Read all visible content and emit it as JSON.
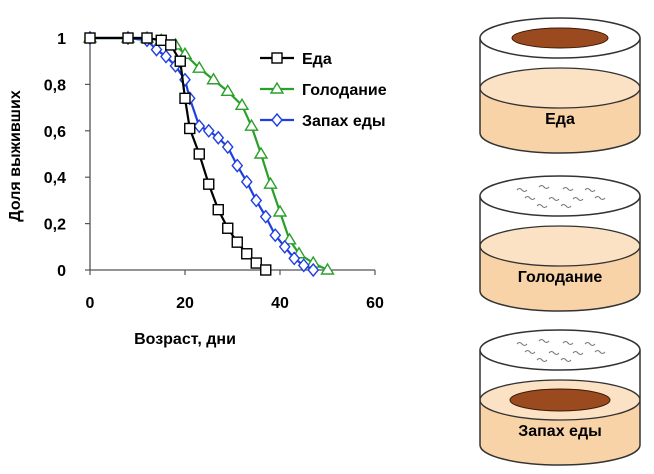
{
  "chart_data": {
    "type": "line",
    "title": "",
    "xlabel": "Возраст, дни",
    "ylabel": "Доля выживших",
    "xlim": [
      0,
      60
    ],
    "ylim": [
      0,
      1
    ],
    "x_ticks": [
      "0",
      "20",
      "40",
      "60"
    ],
    "y_ticks": [
      "0",
      "0,2",
      "0,4",
      "0,6",
      "0,8",
      "1"
    ],
    "legend_position": "top-right",
    "series": [
      {
        "name": "Еда",
        "color": "#000000",
        "marker": "square",
        "points": [
          [
            0,
            1
          ],
          [
            8,
            1
          ],
          [
            12,
            1
          ],
          [
            15,
            0.99
          ],
          [
            17,
            0.97
          ],
          [
            19,
            0.9
          ],
          [
            20,
            0.74
          ],
          [
            21,
            0.61
          ],
          [
            23,
            0.5
          ],
          [
            25,
            0.37
          ],
          [
            27,
            0.26
          ],
          [
            29,
            0.18
          ],
          [
            31,
            0.12
          ],
          [
            33,
            0.07
          ],
          [
            35,
            0.03
          ],
          [
            37,
            0
          ]
        ]
      },
      {
        "name": "Голодание",
        "color": "#2aa02a",
        "marker": "triangle",
        "points": [
          [
            0,
            1
          ],
          [
            8,
            1
          ],
          [
            12,
            1
          ],
          [
            15,
            0.99
          ],
          [
            18,
            0.97
          ],
          [
            20,
            0.93
          ],
          [
            23,
            0.87
          ],
          [
            26,
            0.82
          ],
          [
            29,
            0.77
          ],
          [
            32,
            0.71
          ],
          [
            34,
            0.62
          ],
          [
            36,
            0.5
          ],
          [
            38,
            0.37
          ],
          [
            40,
            0.25
          ],
          [
            42,
            0.13
          ],
          [
            44,
            0.07
          ],
          [
            47,
            0.03
          ],
          [
            50,
            0
          ]
        ]
      },
      {
        "name": "Запах еды",
        "color": "#1f3fe0",
        "marker": "diamond",
        "points": [
          [
            0,
            1
          ],
          [
            8,
            1
          ],
          [
            12,
            0.99
          ],
          [
            14,
            0.95
          ],
          [
            16,
            0.92
          ],
          [
            18,
            0.88
          ],
          [
            20,
            0.82
          ],
          [
            21,
            0.74
          ],
          [
            23,
            0.62
          ],
          [
            25,
            0.6
          ],
          [
            27,
            0.57
          ],
          [
            29,
            0.53
          ],
          [
            31,
            0.45
          ],
          [
            33,
            0.38
          ],
          [
            35,
            0.3
          ],
          [
            37,
            0.23
          ],
          [
            39,
            0.15
          ],
          [
            41,
            0.1
          ],
          [
            43,
            0.05
          ],
          [
            45,
            0.02
          ],
          [
            47,
            0
          ]
        ]
      }
    ]
  },
  "dishes": [
    {
      "label": "Еда",
      "content": "food-disk",
      "lid_color": "#9b4a1f"
    },
    {
      "label": "Голодание",
      "content": "empty",
      "lid_color": ""
    },
    {
      "label": "Запах еды",
      "content": "food-disk-bottom",
      "lid_color": "#9b4a1f"
    }
  ],
  "colors": {
    "dish_medium": "#f9d3a8",
    "dish_medium_top": "#fbe2c4",
    "food": "#9b4a1f"
  }
}
